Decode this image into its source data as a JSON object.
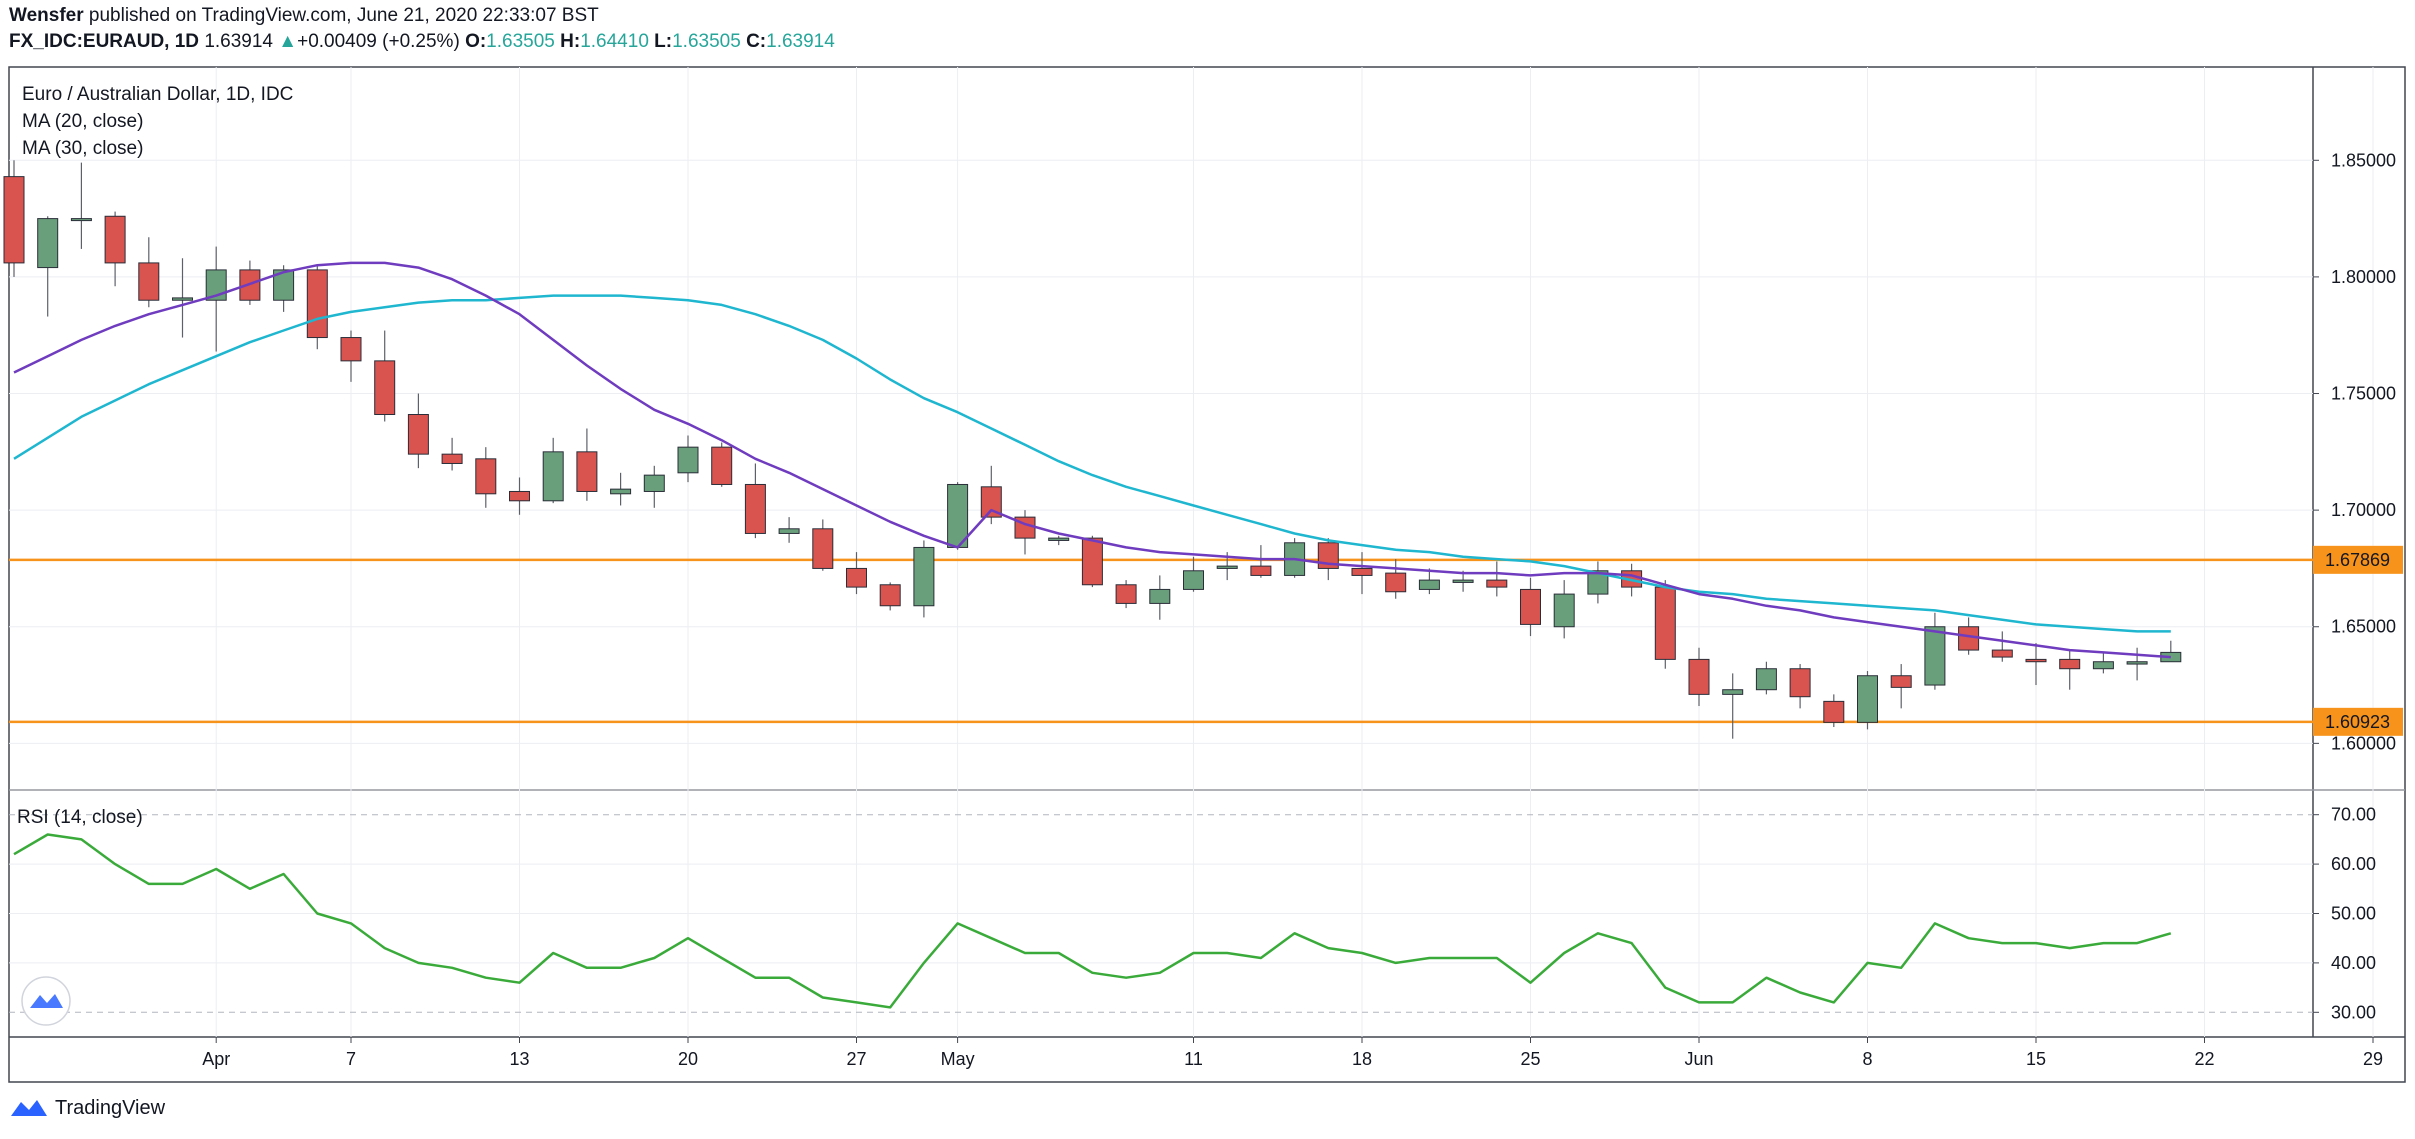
{
  "header": {
    "author": "Wensfer",
    "published_text": "published on TradingView.com, June 21, 2020 22:33:07 BST",
    "symbol": "FX_IDC:EURAUD, 1D",
    "last": "1.63914",
    "change": "+0.00409 (+0.25%)",
    "o_label": "O:",
    "o_value": "1.63505",
    "h_label": "H:",
    "h_value": "1.64410",
    "l_label": "L:",
    "l_value": "1.63505",
    "c_label": "C:",
    "c_value": "1.63914"
  },
  "legend": {
    "title": "Euro / Australian Dollar, 1D, IDC",
    "ma20": "MA (20, close)",
    "ma30": "MA (30, close)",
    "rsi": "RSI (14, close)"
  },
  "footer": {
    "brand": "TradingView"
  },
  "colors": {
    "up": "#6a9f7b",
    "down": "#d9534f",
    "ma20": "#6f3cbf",
    "ma30": "#1fb6d0",
    "rsi": "#3aab3a",
    "level": "#f7931a",
    "grid": "#eceef2"
  },
  "chart_data": {
    "type": "candlestick",
    "title": "Euro / Australian Dollar, 1D, IDC",
    "price_ylim": [
      1.58,
      1.89
    ],
    "price_ticks": [
      "1.60000",
      "1.65000",
      "1.70000",
      "1.75000",
      "1.80000",
      "1.85000"
    ],
    "x_ticks": [
      {
        "i": 6,
        "label": "Apr"
      },
      {
        "i": 10,
        "label": "7"
      },
      {
        "i": 15,
        "label": "13"
      },
      {
        "i": 20,
        "label": "20"
      },
      {
        "i": 25,
        "label": "27"
      },
      {
        "i": 28,
        "label": "May"
      },
      {
        "i": 35,
        "label": "11"
      },
      {
        "i": 40,
        "label": "18"
      },
      {
        "i": 45,
        "label": "25"
      },
      {
        "i": 50,
        "label": "Jun"
      },
      {
        "i": 55,
        "label": "8"
      },
      {
        "i": 60,
        "label": "15"
      },
      {
        "i": 65,
        "label": "22"
      },
      {
        "i": 70,
        "label": "29"
      }
    ],
    "levels": [
      {
        "value": 1.67869,
        "label": "1.67869"
      },
      {
        "value": 1.60923,
        "label": "1.60923"
      }
    ],
    "candles": [
      {
        "o": 1.843,
        "h": 1.85,
        "l": 1.8,
        "c": 1.806
      },
      {
        "o": 1.804,
        "h": 1.826,
        "l": 1.783,
        "c": 1.825
      },
      {
        "o": 1.825,
        "h": 1.849,
        "l": 1.812,
        "c": 1.825
      },
      {
        "o": 1.826,
        "h": 1.828,
        "l": 1.796,
        "c": 1.806
      },
      {
        "o": 1.806,
        "h": 1.817,
        "l": 1.787,
        "c": 1.79
      },
      {
        "o": 1.79,
        "h": 1.808,
        "l": 1.774,
        "c": 1.791
      },
      {
        "o": 1.79,
        "h": 1.813,
        "l": 1.768,
        "c": 1.803
      },
      {
        "o": 1.803,
        "h": 1.807,
        "l": 1.788,
        "c": 1.79
      },
      {
        "o": 1.79,
        "h": 1.805,
        "l": 1.785,
        "c": 1.803
      },
      {
        "o": 1.803,
        "h": 1.805,
        "l": 1.769,
        "c": 1.774
      },
      {
        "o": 1.774,
        "h": 1.777,
        "l": 1.755,
        "c": 1.764
      },
      {
        "o": 1.764,
        "h": 1.777,
        "l": 1.738,
        "c": 1.741
      },
      {
        "o": 1.741,
        "h": 1.75,
        "l": 1.718,
        "c": 1.724
      },
      {
        "o": 1.724,
        "h": 1.731,
        "l": 1.717,
        "c": 1.72
      },
      {
        "o": 1.722,
        "h": 1.727,
        "l": 1.701,
        "c": 1.707
      },
      {
        "o": 1.708,
        "h": 1.714,
        "l": 1.698,
        "c": 1.704
      },
      {
        "o": 1.704,
        "h": 1.731,
        "l": 1.703,
        "c": 1.725
      },
      {
        "o": 1.725,
        "h": 1.735,
        "l": 1.704,
        "c": 1.708
      },
      {
        "o": 1.707,
        "h": 1.716,
        "l": 1.702,
        "c": 1.709
      },
      {
        "o": 1.708,
        "h": 1.719,
        "l": 1.701,
        "c": 1.715
      },
      {
        "o": 1.716,
        "h": 1.732,
        "l": 1.712,
        "c": 1.727
      },
      {
        "o": 1.727,
        "h": 1.729,
        "l": 1.71,
        "c": 1.711
      },
      {
        "o": 1.711,
        "h": 1.72,
        "l": 1.688,
        "c": 1.69
      },
      {
        "o": 1.69,
        "h": 1.697,
        "l": 1.686,
        "c": 1.692
      },
      {
        "o": 1.692,
        "h": 1.696,
        "l": 1.674,
        "c": 1.675
      },
      {
        "o": 1.675,
        "h": 1.682,
        "l": 1.664,
        "c": 1.667
      },
      {
        "o": 1.668,
        "h": 1.669,
        "l": 1.657,
        "c": 1.659
      },
      {
        "o": 1.659,
        "h": 1.687,
        "l": 1.654,
        "c": 1.684
      },
      {
        "o": 1.684,
        "h": 1.712,
        "l": 1.683,
        "c": 1.711
      },
      {
        "o": 1.71,
        "h": 1.719,
        "l": 1.694,
        "c": 1.697
      },
      {
        "o": 1.697,
        "h": 1.7,
        "l": 1.681,
        "c": 1.688
      },
      {
        "o": 1.687,
        "h": 1.689,
        "l": 1.685,
        "c": 1.688
      },
      {
        "o": 1.688,
        "h": 1.689,
        "l": 1.667,
        "c": 1.668
      },
      {
        "o": 1.668,
        "h": 1.67,
        "l": 1.658,
        "c": 1.66
      },
      {
        "o": 1.66,
        "h": 1.672,
        "l": 1.653,
        "c": 1.666
      },
      {
        "o": 1.666,
        "h": 1.68,
        "l": 1.665,
        "c": 1.674
      },
      {
        "o": 1.675,
        "h": 1.682,
        "l": 1.67,
        "c": 1.676
      },
      {
        "o": 1.676,
        "h": 1.685,
        "l": 1.671,
        "c": 1.672
      },
      {
        "o": 1.672,
        "h": 1.688,
        "l": 1.671,
        "c": 1.686
      },
      {
        "o": 1.686,
        "h": 1.688,
        "l": 1.67,
        "c": 1.675
      },
      {
        "o": 1.675,
        "h": 1.682,
        "l": 1.664,
        "c": 1.672
      },
      {
        "o": 1.673,
        "h": 1.679,
        "l": 1.662,
        "c": 1.665
      },
      {
        "o": 1.666,
        "h": 1.675,
        "l": 1.664,
        "c": 1.67
      },
      {
        "o": 1.669,
        "h": 1.674,
        "l": 1.665,
        "c": 1.67
      },
      {
        "o": 1.67,
        "h": 1.678,
        "l": 1.663,
        "c": 1.667
      },
      {
        "o": 1.666,
        "h": 1.671,
        "l": 1.646,
        "c": 1.651
      },
      {
        "o": 1.65,
        "h": 1.67,
        "l": 1.645,
        "c": 1.664
      },
      {
        "o": 1.664,
        "h": 1.678,
        "l": 1.66,
        "c": 1.674
      },
      {
        "o": 1.674,
        "h": 1.677,
        "l": 1.663,
        "c": 1.667
      },
      {
        "o": 1.667,
        "h": 1.67,
        "l": 1.632,
        "c": 1.636
      },
      {
        "o": 1.636,
        "h": 1.641,
        "l": 1.616,
        "c": 1.621
      },
      {
        "o": 1.621,
        "h": 1.63,
        "l": 1.602,
        "c": 1.623
      },
      {
        "o": 1.623,
        "h": 1.635,
        "l": 1.621,
        "c": 1.632
      },
      {
        "o": 1.632,
        "h": 1.634,
        "l": 1.615,
        "c": 1.62
      },
      {
        "o": 1.618,
        "h": 1.621,
        "l": 1.607,
        "c": 1.609
      },
      {
        "o": 1.609,
        "h": 1.631,
        "l": 1.606,
        "c": 1.629
      },
      {
        "o": 1.629,
        "h": 1.634,
        "l": 1.615,
        "c": 1.624
      },
      {
        "o": 1.625,
        "h": 1.656,
        "l": 1.623,
        "c": 1.65
      },
      {
        "o": 1.65,
        "h": 1.654,
        "l": 1.638,
        "c": 1.64
      },
      {
        "o": 1.64,
        "h": 1.648,
        "l": 1.635,
        "c": 1.637
      },
      {
        "o": 1.636,
        "h": 1.643,
        "l": 1.625,
        "c": 1.635
      },
      {
        "o": 1.636,
        "h": 1.64,
        "l": 1.623,
        "c": 1.632
      },
      {
        "o": 1.632,
        "h": 1.639,
        "l": 1.63,
        "c": 1.635
      },
      {
        "o": 1.634,
        "h": 1.641,
        "l": 1.627,
        "c": 1.635
      },
      {
        "o": 1.635,
        "h": 1.644,
        "l": 1.635,
        "c": 1.639
      }
    ],
    "ma20": [
      1.759,
      1.766,
      1.773,
      1.779,
      1.784,
      1.788,
      1.792,
      1.797,
      1.802,
      1.805,
      1.806,
      1.806,
      1.804,
      1.799,
      1.792,
      1.784,
      1.773,
      1.762,
      1.752,
      1.743,
      1.737,
      1.73,
      1.722,
      1.716,
      1.709,
      1.702,
      1.695,
      1.689,
      1.684,
      1.7,
      1.694,
      1.69,
      1.687,
      1.684,
      1.682,
      1.681,
      1.68,
      1.679,
      1.679,
      1.677,
      1.676,
      1.675,
      1.674,
      1.673,
      1.673,
      1.672,
      1.673,
      1.673,
      1.672,
      1.668,
      1.664,
      1.662,
      1.659,
      1.657,
      1.654,
      1.652,
      1.65,
      1.648,
      1.646,
      1.644,
      1.642,
      1.64,
      1.639,
      1.638,
      1.637
    ],
    "ma30": [
      1.722,
      1.731,
      1.74,
      1.747,
      1.754,
      1.76,
      1.766,
      1.772,
      1.777,
      1.782,
      1.785,
      1.787,
      1.789,
      1.79,
      1.79,
      1.791,
      1.792,
      1.792,
      1.792,
      1.791,
      1.79,
      1.788,
      1.784,
      1.779,
      1.773,
      1.765,
      1.756,
      1.748,
      1.742,
      1.735,
      1.728,
      1.721,
      1.715,
      1.71,
      1.706,
      1.702,
      1.698,
      1.694,
      1.69,
      1.687,
      1.685,
      1.683,
      1.682,
      1.68,
      1.679,
      1.678,
      1.676,
      1.673,
      1.67,
      1.667,
      1.665,
      1.664,
      1.662,
      1.661,
      1.66,
      1.659,
      1.658,
      1.657,
      1.655,
      1.653,
      1.651,
      1.65,
      1.649,
      1.648,
      1.648
    ],
    "rsi_ylim": [
      25,
      75
    ],
    "rsi_ticks": [
      "30.00",
      "40.00",
      "50.00",
      "60.00",
      "70.00"
    ],
    "rsi": [
      62,
      66,
      65,
      60,
      56,
      56,
      59,
      55,
      58,
      50,
      48,
      43,
      40,
      39,
      37,
      36,
      42,
      39,
      39,
      41,
      45,
      41,
      37,
      37,
      33,
      32,
      31,
      40,
      48,
      45,
      42,
      42,
      38,
      37,
      38,
      42,
      42,
      41,
      46,
      43,
      42,
      40,
      41,
      41,
      41,
      36,
      42,
      46,
      44,
      35,
      32,
      32,
      37,
      34,
      32,
      40,
      39,
      48,
      45,
      44,
      44,
      43,
      44,
      44,
      46
    ]
  }
}
